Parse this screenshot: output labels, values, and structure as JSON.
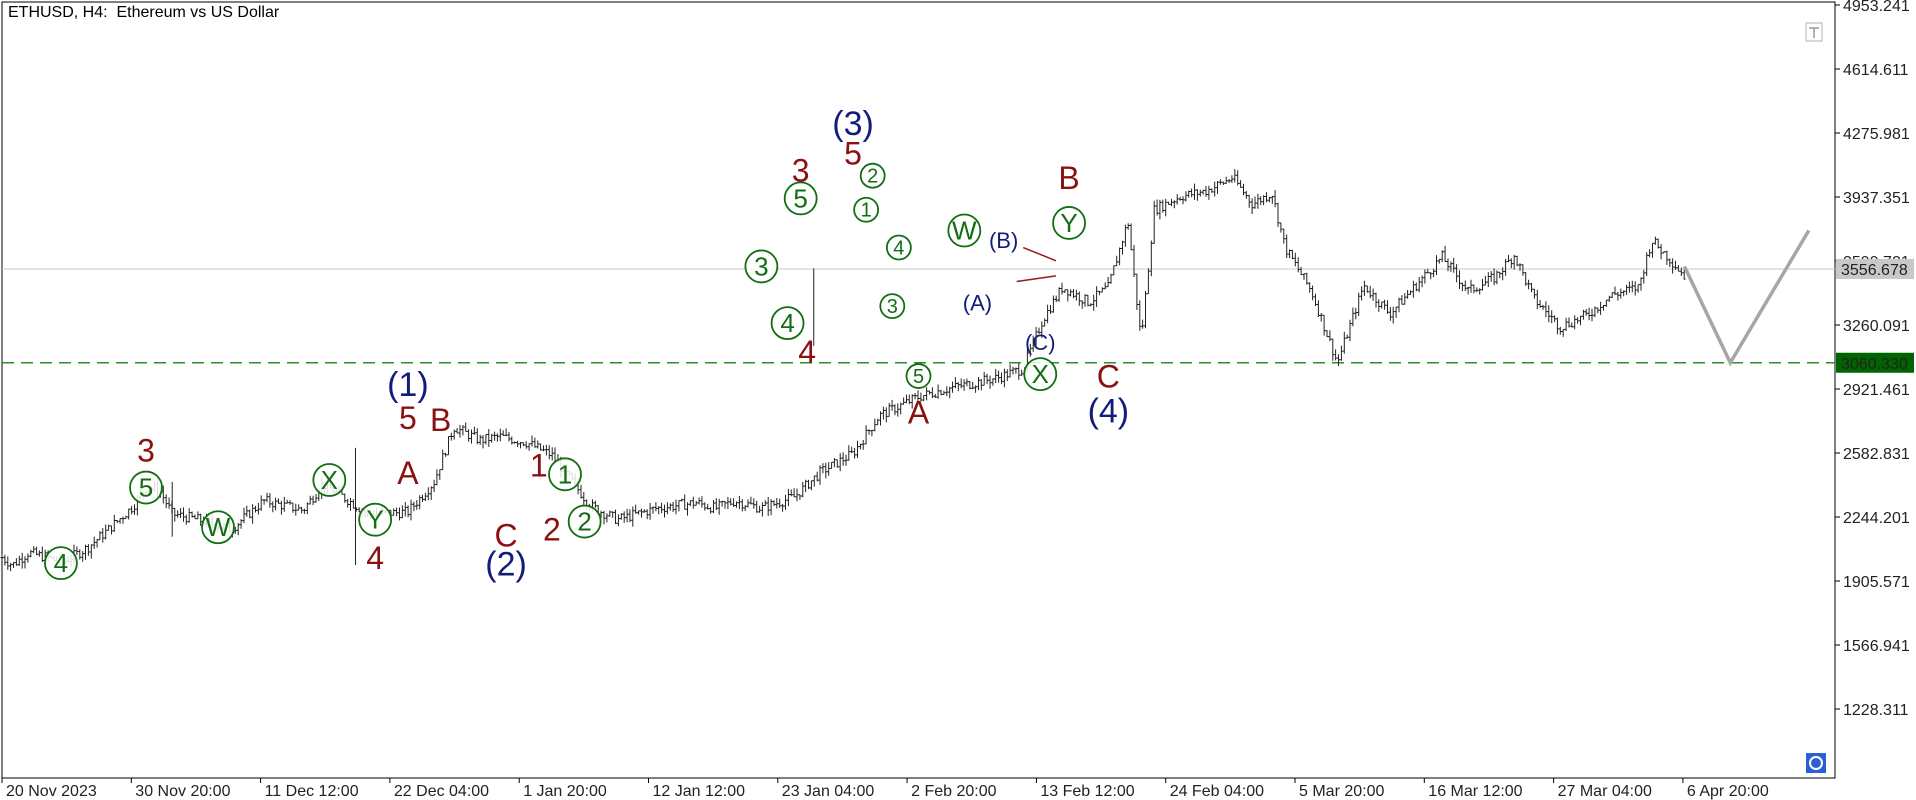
{
  "chart_data": {
    "type": "candlestick",
    "title": "ETHUSD, H4:  Ethereum vs US Dollar",
    "ylim": [
      1000,
      4953.241
    ],
    "y_ticks": [
      "4953.241",
      "4614.611",
      "4275.981",
      "3937.351",
      "3599.721",
      "3260.091",
      "2921.461",
      "2582.831",
      "2244.201",
      "1905.571",
      "1566.941",
      "1228.311"
    ],
    "x_ticks": [
      "20 Nov 2023",
      "30 Nov 20:00",
      "11 Dec 12:00",
      "22 Dec 04:00",
      "1 Jan 20:00",
      "12 Jan 12:00",
      "23 Jan 04:00",
      "2 Feb 20:00",
      "13 Feb 12:00",
      "24 Feb 04:00",
      "5 Mar 20:00",
      "16 Mar 12:00",
      "27 Mar 04:00",
      "6 Apr 20:00"
    ],
    "price_path": [
      [
        0,
        2030
      ],
      [
        0.8,
        1990
      ],
      [
        2,
        2055
      ],
      [
        3.5,
        2030
      ],
      [
        4.5,
        2000
      ],
      [
        6.5,
        2080
      ],
      [
        8,
        2170
      ],
      [
        10,
        2300
      ],
      [
        11,
        2400
      ],
      [
        12,
        2390
      ],
      [
        13,
        2260
      ],
      [
        15,
        2230
      ],
      [
        17.5,
        2180
      ],
      [
        20,
        2330
      ],
      [
        23,
        2280
      ],
      [
        24.5,
        2420
      ],
      [
        26.5,
        2330
      ],
      [
        28,
        2260
      ],
      [
        31,
        2270
      ],
      [
        33,
        2430
      ],
      [
        34.5,
        2720
      ],
      [
        36.5,
        2650
      ],
      [
        38,
        2670
      ],
      [
        40,
        2640
      ],
      [
        42,
        2570
      ],
      [
        45,
        2300
      ],
      [
        47,
        2230
      ],
      [
        50,
        2290
      ],
      [
        53,
        2320
      ],
      [
        54.5,
        2290
      ],
      [
        56,
        2330
      ],
      [
        58,
        2290
      ],
      [
        60.5,
        2350
      ],
      [
        62.5,
        2480
      ],
      [
        65,
        2580
      ],
      [
        67,
        2780
      ],
      [
        70,
        2880
      ],
      [
        72,
        2920
      ],
      [
        74,
        2950
      ],
      [
        76,
        2980
      ],
      [
        78,
        3030
      ],
      [
        79.5,
        3290
      ],
      [
        81,
        3460
      ],
      [
        83,
        3380
      ],
      [
        84.5,
        3460
      ],
      [
        86,
        3810
      ],
      [
        87,
        3180
      ],
      [
        88,
        3870
      ],
      [
        90,
        3940
      ],
      [
        92,
        3970
      ],
      [
        94,
        4040
      ],
      [
        95.5,
        3900
      ],
      [
        97,
        3960
      ],
      [
        98,
        3670
      ],
      [
        100,
        3440
      ],
      [
        102,
        3060
      ],
      [
        104,
        3470
      ],
      [
        106,
        3320
      ],
      [
        108,
        3470
      ],
      [
        110,
        3620
      ],
      [
        112,
        3440
      ],
      [
        114,
        3510
      ],
      [
        115.5,
        3630
      ],
      [
        117,
        3400
      ],
      [
        119,
        3250
      ],
      [
        121,
        3310
      ],
      [
        123,
        3420
      ],
      [
        125,
        3460
      ],
      [
        126,
        3710
      ],
      [
        127.5,
        3600
      ],
      [
        128.5,
        3520
      ]
    ],
    "projection": [
      [
        128.5,
        3570
      ],
      [
        132,
        3060
      ],
      [
        138,
        3760
      ]
    ],
    "current_price": "3556.678",
    "level_price": "3060.330",
    "level_value": 3060.33,
    "wave_labels": [
      {
        "text": "4",
        "t": 4.5,
        "v": 2000,
        "style": "green-circle"
      },
      {
        "text": "5",
        "t": 11,
        "v": 2400,
        "style": "green-circle"
      },
      {
        "text": "3",
        "t": 11,
        "v": 2600,
        "style": "dark-red"
      },
      {
        "text": "W",
        "t": 16.5,
        "v": 2190,
        "style": "green-circle"
      },
      {
        "text": "X",
        "t": 25,
        "v": 2440,
        "style": "green-circle"
      },
      {
        "text": "Y",
        "t": 28.5,
        "v": 2230,
        "style": "green-circle"
      },
      {
        "text": "4",
        "t": 28.5,
        "v": 2030,
        "style": "dark-red"
      },
      {
        "text": "5",
        "t": 31,
        "v": 2770,
        "style": "dark-red"
      },
      {
        "text": "(1)",
        "t": 31,
        "v": 2950,
        "style": "navy-large"
      },
      {
        "text": "A",
        "t": 31,
        "v": 2480,
        "style": "dark-red"
      },
      {
        "text": "B",
        "t": 33.5,
        "v": 2760,
        "style": "dark-red"
      },
      {
        "text": "C",
        "t": 38.5,
        "v": 2150,
        "style": "dark-red"
      },
      {
        "text": "(2)",
        "t": 38.5,
        "v": 2000,
        "style": "navy-large"
      },
      {
        "text": "1",
        "t": 41,
        "v": 2520,
        "style": "dark-red"
      },
      {
        "text": "2",
        "t": 42,
        "v": 2180,
        "style": "dark-red"
      },
      {
        "text": "1",
        "t": 43,
        "v": 2470,
        "style": "green-circle"
      },
      {
        "text": "2",
        "t": 44.5,
        "v": 2220,
        "style": "green-circle"
      },
      {
        "text": "3",
        "t": 58,
        "v": 3570,
        "style": "green-circle"
      },
      {
        "text": "4",
        "t": 60,
        "v": 3270,
        "style": "green-circle"
      },
      {
        "text": "5",
        "t": 61,
        "v": 3930,
        "style": "green-circle"
      },
      {
        "text": "3",
        "t": 61,
        "v": 4080,
        "style": "dark-red"
      },
      {
        "text": "4",
        "t": 61.5,
        "v": 3120,
        "style": "dark-red"
      },
      {
        "text": "5",
        "t": 65,
        "v": 4170,
        "style": "dark-red"
      },
      {
        "text": "(3)",
        "t": 65,
        "v": 4330,
        "style": "navy-large"
      },
      {
        "text": "2",
        "t": 66.5,
        "v": 4050,
        "style": "green-circle-small"
      },
      {
        "text": "1",
        "t": 66,
        "v": 3870,
        "style": "green-circle-small"
      },
      {
        "text": "4",
        "t": 68.5,
        "v": 3670,
        "style": "green-circle-small"
      },
      {
        "text": "3",
        "t": 68,
        "v": 3360,
        "style": "green-circle-small"
      },
      {
        "text": "5",
        "t": 70,
        "v": 2990,
        "style": "green-circle-small"
      },
      {
        "text": "A",
        "t": 70,
        "v": 2800,
        "style": "dark-red"
      },
      {
        "text": "W",
        "t": 73.5,
        "v": 3760,
        "style": "green-circle"
      },
      {
        "text": "(A)",
        "t": 74.5,
        "v": 3380,
        "style": "navy"
      },
      {
        "text": "(B)",
        "t": 76.5,
        "v": 3710,
        "style": "navy"
      },
      {
        "text": "(C)",
        "t": 79.3,
        "v": 3170,
        "style": "navy"
      },
      {
        "text": "X",
        "t": 79.3,
        "v": 3000,
        "style": "green-circle"
      },
      {
        "text": "Y",
        "t": 81.5,
        "v": 3800,
        "style": "green-circle"
      },
      {
        "text": "B",
        "t": 81.5,
        "v": 4040,
        "style": "dark-red"
      },
      {
        "text": "C",
        "t": 84.5,
        "v": 2990,
        "style": "dark-red"
      },
      {
        "text": "(4)",
        "t": 84.5,
        "v": 2810,
        "style": "navy-large"
      }
    ],
    "colors": {
      "dark_red": "#8b1111",
      "green": "#126e12",
      "navy": "#121d7a",
      "price": "#222222",
      "level": "#2e8b2e",
      "projection": "#a6a6a6",
      "triangle": "#9b1818"
    }
  }
}
